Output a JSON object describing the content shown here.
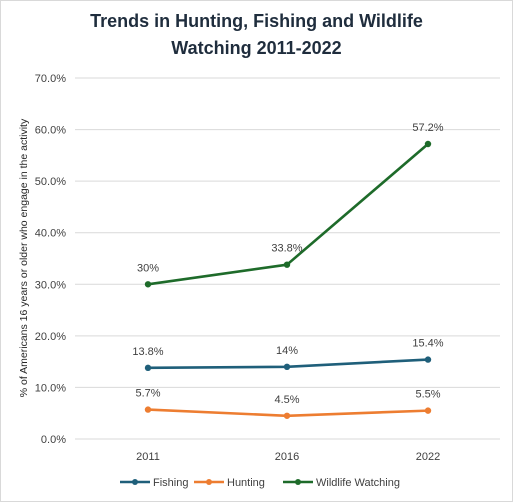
{
  "chart_data": {
    "type": "line",
    "title_line1": "Trends in Hunting, Fishing and Wildlife",
    "title_line2": "Watching 2011-2022",
    "ylabel": "% of Americans 16 years or older who engage in the activity",
    "xlabel": "",
    "categories": [
      "2011",
      "2016",
      "2022"
    ],
    "ylim": [
      0,
      70
    ],
    "yticks": [
      0,
      10,
      20,
      30,
      40,
      50,
      60,
      70
    ],
    "ytick_labels": [
      "0.0%",
      "10.0%",
      "20.0%",
      "30.0%",
      "40.0%",
      "50.0%",
      "60.0%",
      "70.0%"
    ],
    "grid": "horizontal",
    "legend_position": "bottom",
    "series": [
      {
        "name": "Fishing",
        "color": "#1f5f7a",
        "values": [
          13.8,
          14,
          15.4
        ],
        "labels": [
          "13.8%",
          "14%",
          "15.4%"
        ]
      },
      {
        "name": "Hunting",
        "color": "#ed7d31",
        "values": [
          5.7,
          4.5,
          5.5
        ],
        "labels": [
          "5.7%",
          "4.5%",
          "5.5%"
        ]
      },
      {
        "name": "Wildlife Watching",
        "color": "#1e6b2a",
        "values": [
          30,
          33.8,
          57.2
        ],
        "labels": [
          "30%",
          "33.8%",
          "57.2%"
        ]
      }
    ]
  }
}
